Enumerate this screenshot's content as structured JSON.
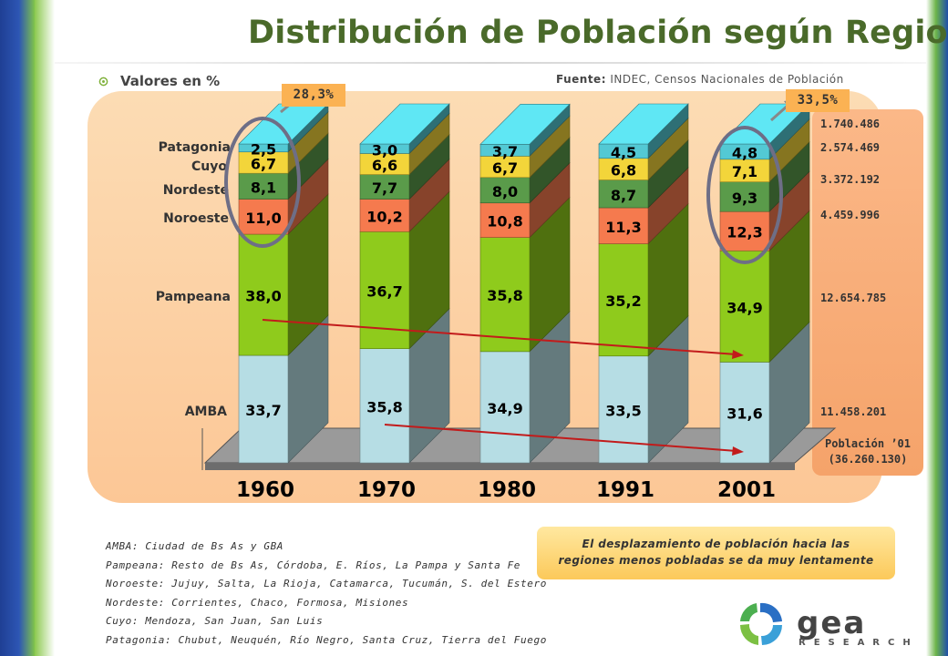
{
  "title": "Distribución de Población según Regiones",
  "subtitle": "Valores en %",
  "source": {
    "label": "Fuente:",
    "text": "INDEC, Censos Nacionales de Población"
  },
  "callouts": {
    "left": "28,3%",
    "right": "33,5%"
  },
  "chart_data": {
    "type": "bar",
    "stacked": true,
    "categories": [
      "1960",
      "1970",
      "1980",
      "1991",
      "2001"
    ],
    "series": [
      {
        "name": "AMBA",
        "color": "#b6dde4",
        "values": [
          33.7,
          35.8,
          34.9,
          33.5,
          31.6
        ],
        "labels": [
          "33,7",
          "35,8",
          "34,9",
          "33,5",
          "31,6"
        ]
      },
      {
        "name": "Pampeana",
        "color": "#8fcb1c",
        "values": [
          38.0,
          36.7,
          35.8,
          35.2,
          34.9
        ],
        "labels": [
          "38,0",
          "36,7",
          "35,8",
          "35,2",
          "34,9"
        ]
      },
      {
        "name": "Noroeste",
        "color": "#f57a4e",
        "values": [
          11.0,
          10.2,
          10.8,
          11.3,
          12.3
        ],
        "labels": [
          "11,0",
          "10,2",
          "10,8",
          "11,3",
          "12,3"
        ]
      },
      {
        "name": "Nordeste",
        "color": "#5a9b4a",
        "values": [
          8.1,
          7.7,
          8.0,
          8.7,
          9.3
        ],
        "labels": [
          "8,1",
          "7,7",
          "8,0",
          "8,7",
          "9,3"
        ]
      },
      {
        "name": "Cuyo",
        "color": "#f3d53a",
        "values": [
          6.7,
          6.6,
          6.7,
          6.8,
          7.1
        ],
        "labels": [
          "6,7",
          "6,6",
          "6,7",
          "6,8",
          "7,1"
        ]
      },
      {
        "name": "Patagonia",
        "color": "#53c9d4",
        "values": [
          2.5,
          3.0,
          3.7,
          4.5,
          4.8
        ],
        "labels": [
          "2,5",
          "3,0",
          "3,7",
          "4,5",
          "4,8"
        ]
      }
    ],
    "ylim": [
      0,
      100
    ],
    "legend_left": [
      "Patagonia",
      "Cuyo",
      "Nordeste",
      "Noroeste",
      "Pampeana",
      "AMBA"
    ],
    "population_2001": [
      {
        "region": "Patagonia",
        "value": "1.740.486"
      },
      {
        "region": "Cuyo",
        "value": "2.574.469"
      },
      {
        "region": "Nordeste",
        "value": "3.372.192"
      },
      {
        "region": "Noroeste",
        "value": "4.459.996"
      },
      {
        "region": "Pampeana",
        "value": "12.654.785"
      },
      {
        "region": "AMBA",
        "value": "11.458.201"
      }
    ],
    "population_title": "Población ’01",
    "population_total": "(36.260.130)"
  },
  "notes": [
    "AMBA: Ciudad de Bs As y GBA",
    "Pampeana: Resto de Bs As, Córdoba, E. Ríos, La Pampa y Santa Fe",
    "Noroeste: Jujuy, Salta, La Rioja, Catamarca, Tucumán, S. del Estero",
    "Nordeste: Corrientes, Chaco, Formosa, Misiones",
    "Cuyo: Mendoza, San Juan, San Luis",
    "Patagonia: Chubut, Neuquén, Río Negro, Santa Cruz, Tierra del Fuego"
  ],
  "conclusion": [
    "El desplazamiento de población hacia las",
    "regiones menos pobladas se da muy lentamente"
  ],
  "logo": {
    "name": "gea",
    "sub": "RESEARCH"
  }
}
